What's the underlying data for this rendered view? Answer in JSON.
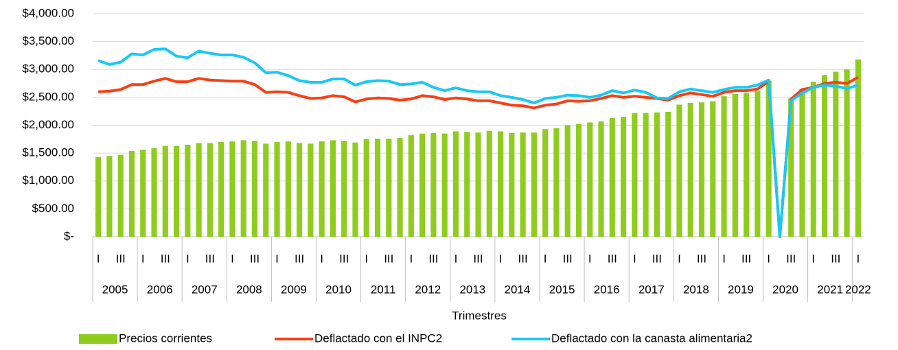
{
  "chart_data": {
    "type": "combo",
    "x_label": "Trimestres",
    "categories": [
      "I",
      null,
      "III",
      null,
      "I",
      null,
      "III",
      null,
      "I",
      null,
      "III",
      null,
      "I",
      null,
      "III",
      null,
      "I",
      null,
      "III",
      null,
      "I",
      null,
      "III",
      null,
      "I",
      null,
      "III",
      null,
      "I",
      null,
      "III",
      null,
      "I",
      null,
      "III",
      null,
      "I",
      null,
      "III",
      null,
      "I",
      null,
      "III",
      null,
      "I",
      null,
      "III",
      null,
      "I",
      null,
      "III",
      null,
      "I",
      null,
      "III",
      null,
      "I",
      null,
      "III",
      null,
      "I",
      null,
      "III",
      null,
      "I",
      null,
      "III",
      null,
      "I"
    ],
    "year_groups": [
      "2005",
      "2006",
      "2007",
      "2008",
      "2009",
      "2010",
      "2011",
      "2012",
      "2013",
      "2014",
      "2015",
      "2016",
      "2017",
      "2018",
      "2019",
      "2020",
      "2021",
      "2022"
    ],
    "series": [
      {
        "name": "Precios corrientes",
        "type": "bar",
        "color": "#8fcc1f",
        "values": [
          1430,
          1450,
          1470,
          1540,
          1560,
          1590,
          1630,
          1630,
          1650,
          1680,
          1680,
          1700,
          1710,
          1730,
          1720,
          1670,
          1700,
          1710,
          1680,
          1670,
          1710,
          1730,
          1720,
          1690,
          1750,
          1760,
          1760,
          1770,
          1820,
          1850,
          1860,
          1850,
          1890,
          1880,
          1870,
          1900,
          1890,
          1860,
          1870,
          1870,
          1930,
          1950,
          2000,
          2020,
          2050,
          2070,
          2130,
          2150,
          2220,
          2220,
          2230,
          2240,
          2370,
          2400,
          2410,
          2430,
          2520,
          2560,
          2580,
          2620,
          2800,
          0,
          2480,
          2650,
          2780,
          2900,
          2960,
          3000,
          3180
        ]
      },
      {
        "name": "Deflactado con el INPC2",
        "type": "line",
        "color": "#fa3f14",
        "values": [
          2600,
          2610,
          2640,
          2730,
          2730,
          2790,
          2840,
          2780,
          2780,
          2840,
          2810,
          2800,
          2790,
          2790,
          2730,
          2590,
          2600,
          2590,
          2530,
          2480,
          2490,
          2530,
          2510,
          2420,
          2470,
          2490,
          2480,
          2450,
          2470,
          2530,
          2510,
          2460,
          2490,
          2470,
          2440,
          2440,
          2400,
          2360,
          2350,
          2310,
          2360,
          2380,
          2440,
          2430,
          2440,
          2480,
          2530,
          2500,
          2520,
          2500,
          2480,
          2450,
          2530,
          2580,
          2550,
          2520,
          2590,
          2620,
          2620,
          2650,
          2790,
          0,
          2470,
          2640,
          2680,
          2750,
          2770,
          2750,
          2860
        ]
      },
      {
        "name": "Deflactado con la canasta alimentaria2",
        "type": "line",
        "color": "#1ac8f5",
        "values": [
          3160,
          3090,
          3130,
          3280,
          3260,
          3360,
          3370,
          3240,
          3210,
          3330,
          3290,
          3260,
          3260,
          3220,
          3120,
          2940,
          2950,
          2890,
          2800,
          2770,
          2770,
          2830,
          2830,
          2720,
          2780,
          2800,
          2790,
          2730,
          2740,
          2770,
          2680,
          2620,
          2670,
          2620,
          2600,
          2600,
          2530,
          2500,
          2460,
          2400,
          2480,
          2500,
          2540,
          2530,
          2500,
          2540,
          2620,
          2580,
          2630,
          2590,
          2490,
          2480,
          2600,
          2650,
          2620,
          2590,
          2640,
          2680,
          2680,
          2720,
          2810,
          0,
          2440,
          2580,
          2680,
          2720,
          2700,
          2660,
          2720
        ]
      }
    ],
    "ylim": [
      0,
      4000
    ],
    "yticks": [
      {
        "value": 0,
        "label": "$-"
      },
      {
        "value": 500,
        "label": "$500.00"
      },
      {
        "value": 1000,
        "label": "$1,000.00"
      },
      {
        "value": 1500,
        "label": "$1,500.00"
      },
      {
        "value": 2000,
        "label": "$2,000.00"
      },
      {
        "value": 2500,
        "label": "$2,500.00"
      },
      {
        "value": 3000,
        "label": "$3,000.00"
      },
      {
        "value": 3500,
        "label": "$3,500.00"
      },
      {
        "value": 4000,
        "label": "$4,000.00"
      }
    ],
    "grid": true,
    "legend": "bottom"
  }
}
